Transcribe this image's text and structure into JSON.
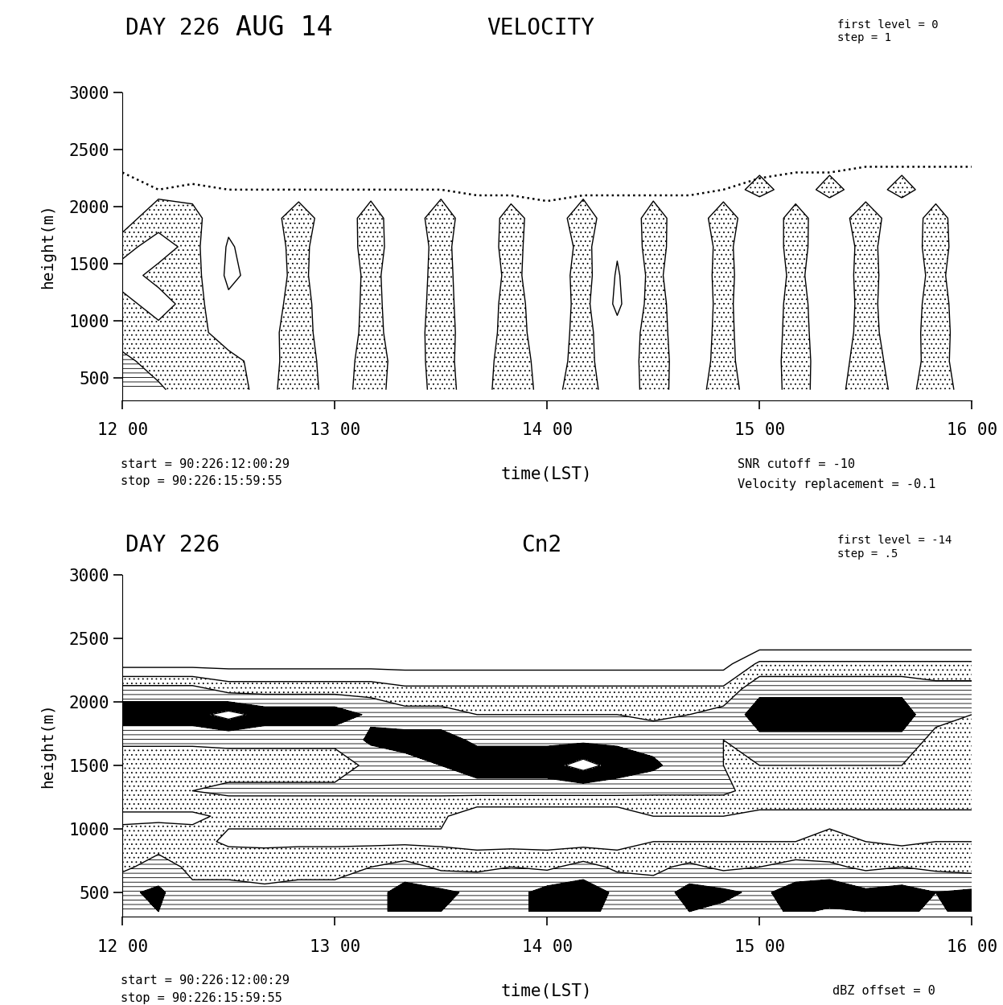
{
  "chart_data": [
    {
      "type": "contour",
      "day": "DAY 226",
      "date": "AUG 14",
      "title": "VELOCITY",
      "first_level_label": "first level = 0",
      "step_label": "step = 1",
      "first_level": 0,
      "step": 1,
      "start": "start = 90:226:12:00:29",
      "stop": "stop = 90:226:15:59:55",
      "notes": [
        "SNR cutoff = -10",
        "Velocity replacement = -0.1"
      ],
      "x_label": "time(LST)",
      "y_label": "height(m)",
      "xlim": [
        12,
        16
      ],
      "xticks": [
        {
          "value": 12,
          "label": "12 00"
        },
        {
          "value": 13,
          "label": "13 00"
        },
        {
          "value": 14,
          "label": "14 00"
        },
        {
          "value": 15,
          "label": "15 00"
        },
        {
          "value": 16,
          "label": "16 00"
        }
      ],
      "ylim": [
        310,
        3000
      ],
      "yticks": [
        500,
        1000,
        1500,
        2000,
        2500,
        3000
      ],
      "x": [
        12.0,
        12.17,
        12.33,
        12.5,
        12.67,
        12.83,
        13.0,
        13.17,
        13.33,
        13.5,
        13.67,
        13.83,
        14.0,
        14.17,
        14.33,
        14.5,
        14.67,
        14.83,
        15.0,
        15.17,
        15.33,
        15.5,
        15.67,
        15.83,
        16.0
      ],
      "y": [
        400,
        650,
        900,
        1150,
        1400,
        1650,
        1900,
        2150,
        2400
      ],
      "values": [
        [
          -1.5,
          -1.2,
          -0.3,
          -0.4,
          0.3,
          -0.5,
          0.4,
          -0.4,
          0.5,
          -0.3,
          0.4,
          -0.5,
          0.3,
          -0.4,
          0.5,
          -0.3,
          0.4,
          -0.4,
          0.5,
          -0.3,
          0.4,
          -0.5,
          0.3,
          -0.4,
          0.4
        ],
        [
          -1.3,
          -0.5,
          -0.4,
          -0.3,
          0.4,
          -0.5,
          0.5,
          -0.4,
          0.4,
          -0.3,
          0.5,
          -0.5,
          0.4,
          -0.3,
          0.6,
          -0.4,
          0.5,
          -0.3,
          0.6,
          -0.4,
          0.5,
          -0.4,
          0.4,
          -0.3,
          0.5
        ],
        [
          -0.4,
          -0.3,
          -0.4,
          0.5,
          0.3,
          -0.4,
          0.6,
          -0.3,
          0.5,
          -0.4,
          0.6,
          -0.4,
          0.5,
          -0.3,
          0.7,
          -0.4,
          0.6,
          -0.3,
          0.7,
          -0.4,
          0.6,
          -0.3,
          0.5,
          -0.4,
          0.6
        ],
        [
          -0.3,
          0.4,
          -0.4,
          0.8,
          0.5,
          -0.4,
          0.7,
          -0.3,
          0.6,
          -0.4,
          0.7,
          -0.4,
          0.6,
          -0.3,
          1.2,
          -0.4,
          0.7,
          -0.3,
          0.8,
          -0.4,
          0.7,
          -0.3,
          0.6,
          -0.4,
          0.7
        ],
        [
          0.4,
          -0.3,
          -0.4,
          1.2,
          0.6,
          -0.3,
          0.8,
          -0.3,
          0.7,
          -0.4,
          0.8,
          -0.3,
          0.7,
          -0.4,
          1.1,
          -0.3,
          0.8,
          -0.4,
          0.9,
          -0.3,
          0.8,
          -0.4,
          0.7,
          -0.3,
          0.8
        ],
        [
          -0.3,
          0.4,
          -0.3,
          1.1,
          0.5,
          -0.3,
          0.7,
          -0.4,
          0.6,
          -0.3,
          0.7,
          -0.4,
          0.8,
          -0.3,
          0.9,
          -0.4,
          0.7,
          -0.3,
          0.8,
          -0.4,
          0.7,
          -0.3,
          0.6,
          -0.4,
          0.7
        ],
        [
          0.3,
          -0.4,
          -0.3,
          0.8,
          0.4,
          -0.4,
          0.5,
          -0.3,
          0.5,
          -0.4,
          0.6,
          -0.3,
          0.5,
          -0.4,
          0.6,
          -0.3,
          0.5,
          -0.4,
          0.6,
          -0.3,
          0.5,
          -0.4,
          0.5,
          -0.3,
          0.6
        ],
        [
          0.3,
          0.2,
          0.3,
          0.2,
          0.2,
          0.3,
          0.2,
          0.2,
          0.3,
          0.2,
          0.2,
          0.3,
          0.2,
          0.2,
          0.3,
          0.2,
          0.2,
          0.3,
          -0.2,
          0.3,
          -0.2,
          0.3,
          -0.2,
          0.3,
          0.2
        ],
        [
          null,
          null,
          null,
          null,
          null,
          null,
          null,
          null,
          null,
          null,
          null,
          null,
          null,
          null,
          null,
          null,
          null,
          null,
          0.2,
          0.2,
          0.2,
          0.2,
          0.2,
          0.2,
          0.2
        ]
      ],
      "boundary": [
        2300,
        2150,
        2200,
        2150,
        2150,
        2150,
        2150,
        2150,
        2150,
        2150,
        2100,
        2100,
        2050,
        2100,
        2100,
        2100,
        2100,
        2150,
        2250,
        2300,
        2300,
        2350,
        2350,
        2350,
        2350
      ],
      "line_style": "dotted"
    },
    {
      "type": "contour",
      "day": "DAY 226",
      "title": "Cn2",
      "first_level_label": "first level = -14",
      "step_label": "step = .5",
      "first_level": -14,
      "step": 0.5,
      "start": "start = 90:226:12:00:29",
      "stop": "stop = 90:226:15:59:55",
      "notes": [
        "dBZ offset = 0"
      ],
      "x_label": "time(LST)",
      "y_label": "height(m)",
      "xlim": [
        12,
        16
      ],
      "xticks": [
        {
          "value": 12,
          "label": "12 00"
        },
        {
          "value": 13,
          "label": "13 00"
        },
        {
          "value": 14,
          "label": "14 00"
        },
        {
          "value": 15,
          "label": "15 00"
        },
        {
          "value": 16,
          "label": "16 00"
        }
      ],
      "ylim": [
        310,
        3000
      ],
      "yticks": [
        500,
        1000,
        1500,
        2000,
        2500,
        3000
      ],
      "x": [
        12.0,
        12.17,
        12.33,
        12.5,
        12.67,
        12.83,
        13.0,
        13.17,
        13.33,
        13.5,
        13.67,
        13.83,
        14.0,
        14.17,
        14.33,
        14.5,
        14.67,
        14.83,
        15.0,
        15.17,
        15.33,
        15.5,
        15.67,
        15.83,
        16.0
      ],
      "y": [
        350,
        500,
        700,
        900,
        1100,
        1300,
        1500,
        1700,
        1900,
        2100,
        2300,
        2500
      ],
      "values": [
        [
          -12.7,
          -12.5,
          -12.8,
          -12.9,
          -12.9,
          -12.8,
          -12.9,
          -12.6,
          -12.4,
          -12.5,
          -12.7,
          -12.6,
          -12.4,
          -12.3,
          -12.7,
          -12.8,
          -12.5,
          -12.6,
          -12.7,
          -12.4,
          -12.6,
          -12.5,
          -12.4,
          -12.6,
          -12.3
        ],
        [
          -12.6,
          -12.4,
          -12.9,
          -12.9,
          -12.9,
          -12.9,
          -12.9,
          -12.7,
          -12.3,
          -12.4,
          -12.6,
          -12.7,
          -12.3,
          -12.2,
          -12.6,
          -12.8,
          -12.3,
          -12.4,
          -12.6,
          -12.3,
          -12.1,
          -12.4,
          -12.3,
          -12.5,
          -12.4
        ],
        [
          -13.1,
          -12.8,
          -13.1,
          -13.1,
          -13.2,
          -13.1,
          -13.1,
          -13.0,
          -12.8,
          -13.1,
          -13.1,
          -13.0,
          -13.1,
          -12.8,
          -13.1,
          -13.1,
          -12.9,
          -13.1,
          -13.0,
          -12.8,
          -12.9,
          -13.1,
          -13.0,
          -13.1,
          -13.2
        ],
        [
          -13.3,
          -13.2,
          -13.3,
          -13.6,
          -13.6,
          -13.6,
          -13.6,
          -13.6,
          -13.6,
          -13.6,
          -13.7,
          -13.7,
          -13.7,
          -13.7,
          -13.7,
          -13.5,
          -13.5,
          -13.5,
          -13.5,
          -13.5,
          -13.4,
          -13.5,
          -13.6,
          -13.5,
          -13.5
        ],
        [
          -13.6,
          -13.6,
          -13.6,
          -13.4,
          -13.4,
          -13.4,
          -13.4,
          -13.4,
          -13.4,
          -13.4,
          -13.9,
          -13.9,
          -13.9,
          -13.9,
          -13.9,
          -13.5,
          -13.5,
          -13.5,
          -13.6,
          -13.6,
          -13.6,
          -13.6,
          -13.6,
          -13.6,
          -13.6
        ],
        [
          -13.0,
          -13.0,
          -13.0,
          -12.9,
          -12.9,
          -12.9,
          -12.9,
          -12.9,
          -12.9,
          -12.9,
          -12.8,
          -12.8,
          -12.8,
          -12.8,
          -12.8,
          -12.9,
          -12.9,
          -12.9,
          -13.2,
          -13.2,
          -13.2,
          -13.2,
          -13.2,
          -13.2,
          -13.2
        ],
        [
          -13.3,
          -13.3,
          -13.3,
          -13.2,
          -13.2,
          -13.2,
          -13.2,
          -12.9,
          -12.7,
          -12.5,
          -12.2,
          -12.2,
          -12.2,
          -11.8,
          -12.2,
          -12.4,
          -12.8,
          -13.0,
          -13.0,
          -13.0,
          -13.0,
          -13.0,
          -13.0,
          -13.3,
          -13.3
        ],
        [
          -12.9,
          -12.9,
          -12.9,
          -12.9,
          -12.9,
          -12.9,
          -12.9,
          -12.4,
          -12.3,
          -12.3,
          -12.6,
          -12.6,
          -12.6,
          -12.6,
          -12.6,
          -12.7,
          -12.9,
          -13.0,
          -12.6,
          -12.6,
          -12.6,
          -12.6,
          -12.6,
          -13.2,
          -13.2
        ],
        [
          -12.2,
          -12.2,
          -12.2,
          -11.8,
          -12.2,
          -12.2,
          -12.2,
          -12.6,
          -12.8,
          -12.8,
          -13.0,
          -13.0,
          -13.0,
          -13.0,
          -13.0,
          -13.1,
          -13.0,
          -12.8,
          -12.3,
          -12.3,
          -12.3,
          -12.3,
          -12.3,
          -12.8,
          -13.0
        ],
        [
          -12.8,
          -12.8,
          -12.8,
          -13.2,
          -13.2,
          -13.2,
          -13.2,
          -13.2,
          -13.4,
          -13.4,
          -13.4,
          -13.4,
          -13.4,
          -13.4,
          -13.4,
          -13.4,
          -13.4,
          -13.4,
          -12.6,
          -12.6,
          -12.6,
          -12.6,
          -12.6,
          -12.8,
          -12.8
        ],
        [
          -14.2,
          -14.2,
          -14.2,
          -14.2,
          -14.2,
          -14.2,
          -14.2,
          -14.2,
          -14.2,
          -14.2,
          -14.2,
          -14.2,
          -14.2,
          -14.2,
          -14.2,
          -14.2,
          -14.2,
          -14.2,
          -13.4,
          -13.4,
          -13.4,
          -13.4,
          -13.4,
          -13.4,
          -13.4
        ],
        [
          -14.5,
          -14.5,
          -14.5,
          -14.5,
          -14.5,
          -14.5,
          -14.5,
          -14.5,
          -14.5,
          -14.5,
          -14.5,
          -14.5,
          -14.5,
          -14.5,
          -14.5,
          -14.5,
          -14.5,
          -14.5,
          -14.5,
          -14.5,
          -14.5,
          -14.5,
          -14.5,
          -14.5,
          -14.5
        ]
      ]
    }
  ]
}
